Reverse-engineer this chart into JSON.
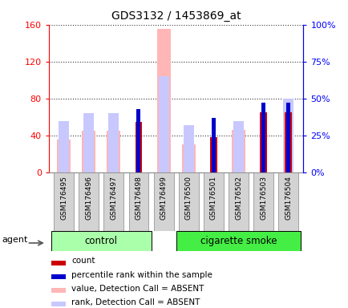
{
  "title": "GDS3132 / 1453869_at",
  "samples": [
    "GSM176495",
    "GSM176496",
    "GSM176497",
    "GSM176498",
    "GSM176499",
    "GSM176500",
    "GSM176501",
    "GSM176502",
    "GSM176503",
    "GSM176504"
  ],
  "count": [
    0,
    0,
    0,
    55,
    0,
    0,
    38,
    0,
    65,
    65
  ],
  "percentile_rank": [
    0,
    0,
    0,
    43,
    0,
    0,
    37,
    0,
    47,
    47
  ],
  "value_absent": [
    36,
    45,
    45,
    0,
    155,
    30,
    0,
    46,
    0,
    0
  ],
  "rank_absent": [
    35,
    40,
    40,
    0,
    65,
    32,
    0,
    35,
    0,
    50
  ],
  "ylim_left": [
    0,
    160
  ],
  "ylim_right": [
    0,
    100
  ],
  "yticks_left": [
    0,
    40,
    80,
    120,
    160
  ],
  "yticks_right": [
    0,
    25,
    50,
    75,
    100
  ],
  "ytick_labels_left": [
    "0",
    "40",
    "80",
    "120",
    "160"
  ],
  "ytick_labels_right": [
    "0%",
    "25%",
    "50%",
    "75%",
    "100%"
  ],
  "color_count": "#cc0000",
  "color_rank": "#0000cc",
  "color_value_absent": "#ffb6b6",
  "color_rank_absent": "#c8c8ff",
  "control_color": "#aaffaa",
  "smoke_color": "#44ee44",
  "legend_items": [
    {
      "label": "count",
      "color": "#cc0000"
    },
    {
      "label": "percentile rank within the sample",
      "color": "#0000cc"
    },
    {
      "label": "value, Detection Call = ABSENT",
      "color": "#ffb6b6"
    },
    {
      "label": "rank, Detection Call = ABSENT",
      "color": "#c8c8ff"
    }
  ],
  "control_samples": 4,
  "smoke_samples": 6,
  "n_samples": 10
}
